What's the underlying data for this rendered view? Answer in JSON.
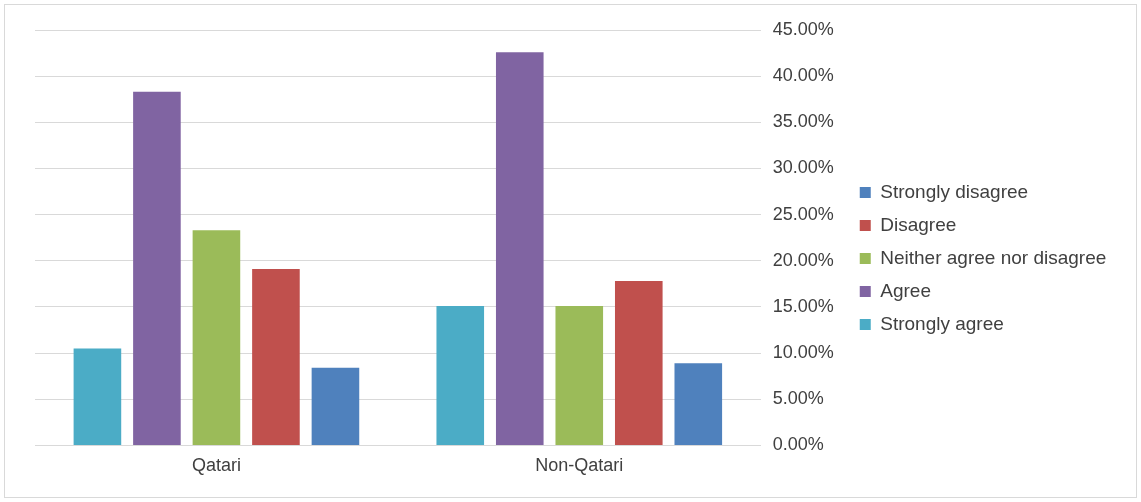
{
  "chart_data": {
    "type": "bar",
    "categories": [
      "Qatari",
      "Non-Qatari"
    ],
    "series": [
      {
        "name": "Strongly agree",
        "color": "#4bacc6",
        "values": [
          10.5,
          15.1
        ]
      },
      {
        "name": "Agree",
        "color": "#8064a2",
        "values": [
          38.3,
          42.6
        ]
      },
      {
        "name": "Neither agree nor disagree",
        "color": "#9bbb59",
        "values": [
          23.3,
          15.1
        ]
      },
      {
        "name": "Disagree",
        "color": "#c0504d",
        "values": [
          19.1,
          17.8
        ]
      },
      {
        "name": "Strongly disagree",
        "color": "#4f81bd",
        "values": [
          8.4,
          8.9
        ]
      }
    ],
    "ylim": [
      0,
      45
    ],
    "yticks": [
      {
        "value": 0,
        "label": "0.00%"
      },
      {
        "value": 5,
        "label": "5.00%"
      },
      {
        "value": 10,
        "label": "10.00%"
      },
      {
        "value": 15,
        "label": "15.00%"
      },
      {
        "value": 20,
        "label": "20.00%"
      },
      {
        "value": 25,
        "label": "25.00%"
      },
      {
        "value": 30,
        "label": "30.00%"
      },
      {
        "value": 35,
        "label": "35.00%"
      },
      {
        "value": 40,
        "label": "40.00%"
      },
      {
        "value": 45,
        "label": "45.00%"
      }
    ],
    "grid": "y",
    "legend": "right"
  }
}
